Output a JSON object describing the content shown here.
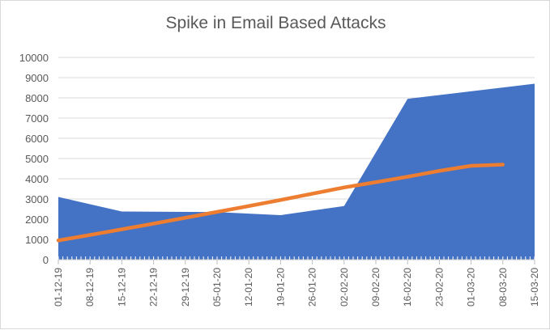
{
  "chart_data": {
    "type": "area",
    "title": "Spike in Email Based  Attacks",
    "xlabel": "",
    "ylabel": "",
    "ylim": [
      0,
      10000
    ],
    "yticks": [
      0,
      1000,
      2000,
      3000,
      4000,
      5000,
      6000,
      7000,
      8000,
      9000,
      10000
    ],
    "x_tick_labels": [
      "01-12-19",
      "08-12-19",
      "15-12-19",
      "22-12-19",
      "29-12-19",
      "05-01-20",
      "12-01-20",
      "19-01-20",
      "26-01-20",
      "02-02-20",
      "09-02-20",
      "16-02-20",
      "23-02-20",
      "01-03-20",
      "08-03-20",
      "15-03-20"
    ],
    "grid": "horizontal",
    "legend": "none",
    "series": [
      {
        "type": "area",
        "color": "#4472C4",
        "points": [
          {
            "x": "01-12-19",
            "y": 3100
          },
          {
            "x": "15-12-19",
            "y": 2380
          },
          {
            "x": "05-01-20",
            "y": 2350
          },
          {
            "x": "19-01-20",
            "y": 2200
          },
          {
            "x": "02-02-20",
            "y": 2650
          },
          {
            "x": "16-02-20",
            "y": 7950
          },
          {
            "x": "15-03-20",
            "y": 8700
          }
        ]
      },
      {
        "type": "trendline",
        "color": "#ED7D31",
        "points": [
          {
            "x": "01-12-19",
            "y": 950
          },
          {
            "x": "08-12-19",
            "y": 1220
          },
          {
            "x": "15-12-19",
            "y": 1500
          },
          {
            "x": "22-12-19",
            "y": 1780
          },
          {
            "x": "29-12-19",
            "y": 2070
          },
          {
            "x": "05-01-20",
            "y": 2360
          },
          {
            "x": "12-01-20",
            "y": 2650
          },
          {
            "x": "19-01-20",
            "y": 2950
          },
          {
            "x": "26-01-20",
            "y": 3260
          },
          {
            "x": "02-02-20",
            "y": 3570
          },
          {
            "x": "09-02-20",
            "y": 3830
          },
          {
            "x": "16-02-20",
            "y": 4100
          },
          {
            "x": "23-02-20",
            "y": 4390
          },
          {
            "x": "01-03-20",
            "y": 4640
          },
          {
            "x": "08-03-20",
            "y": 4700
          }
        ]
      }
    ]
  }
}
